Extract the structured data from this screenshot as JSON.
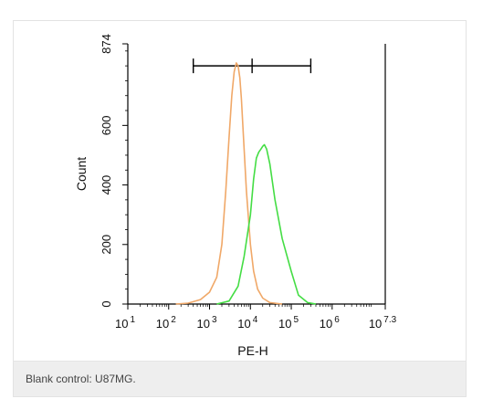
{
  "caption": "Blank control: U87MG.",
  "chart_data": {
    "type": "line",
    "xlabel": "PE-H",
    "ylabel": "Count",
    "x_scale": "log",
    "xlim": [
      10,
      19952623
    ],
    "ylim": [
      0,
      874
    ],
    "y_ticks": [
      0,
      200,
      400,
      600,
      874
    ],
    "y_tick_labels": [
      "0",
      "200",
      "400",
      "600",
      "874"
    ],
    "x_ticks": [
      {
        "base": "10",
        "exp": "1"
      },
      {
        "base": "10",
        "exp": "2"
      },
      {
        "base": "10",
        "exp": "3"
      },
      {
        "base": "10",
        "exp": "4"
      },
      {
        "base": "10",
        "exp": "5"
      },
      {
        "base": "10",
        "exp": "6"
      },
      {
        "base": "10",
        "exp": "7.3"
      }
    ],
    "x_tick_values": [
      10,
      100,
      1000,
      10000,
      100000,
      1000000,
      19952623
    ],
    "gate": {
      "x_start": 400,
      "x_mid": 11000,
      "x_end": 300000,
      "y": 800
    },
    "series": [
      {
        "color": "#f0a868",
        "x": [
          150,
          300,
          600,
          1000,
          1500,
          2000,
          2500,
          3000,
          3500,
          4000,
          4500,
          5000,
          5500,
          6000,
          7000,
          8000,
          10000,
          12000,
          15000,
          20000,
          30000,
          60000
        ],
        "y": [
          0,
          3,
          15,
          40,
          90,
          200,
          380,
          560,
          700,
          780,
          810,
          800,
          760,
          690,
          520,
          380,
          200,
          110,
          50,
          20,
          5,
          0
        ]
      },
      {
        "color": "#44dd44",
        "x": [
          1500,
          3000,
          5000,
          7000,
          10000,
          12000,
          14000,
          16000,
          18000,
          20000,
          22000,
          25000,
          30000,
          40000,
          60000,
          100000,
          150000,
          250000,
          400000
        ],
        "y": [
          0,
          10,
          60,
          160,
          300,
          420,
          490,
          510,
          520,
          530,
          535,
          520,
          470,
          350,
          220,
          110,
          30,
          5,
          0
        ]
      }
    ]
  }
}
